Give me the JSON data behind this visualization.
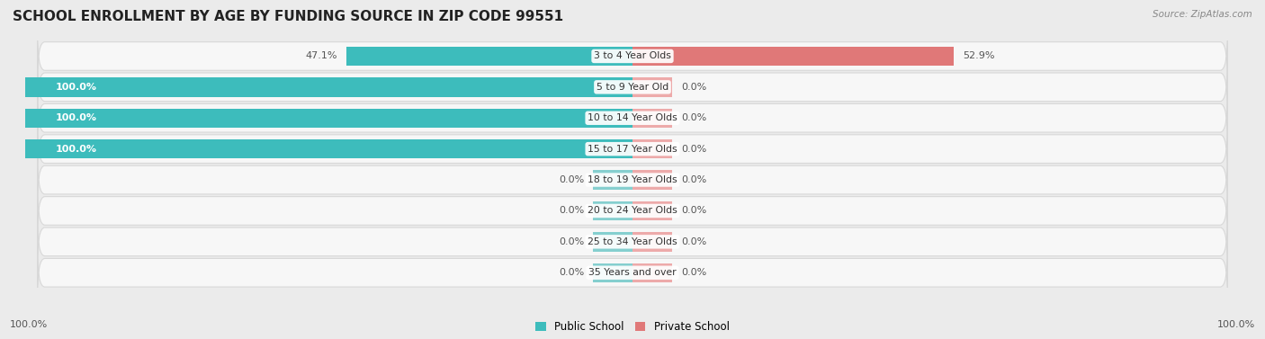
{
  "title": "SCHOOL ENROLLMENT BY AGE BY FUNDING SOURCE IN ZIP CODE 99551",
  "source": "Source: ZipAtlas.com",
  "categories": [
    "3 to 4 Year Olds",
    "5 to 9 Year Old",
    "10 to 14 Year Olds",
    "15 to 17 Year Olds",
    "18 to 19 Year Olds",
    "20 to 24 Year Olds",
    "25 to 34 Year Olds",
    "35 Years and over"
  ],
  "public_values": [
    47.1,
    100.0,
    100.0,
    100.0,
    0.0,
    0.0,
    0.0,
    0.0
  ],
  "private_values": [
    52.9,
    0.0,
    0.0,
    0.0,
    0.0,
    0.0,
    0.0,
    0.0
  ],
  "public_color": "#3DBCBC",
  "private_color": "#E07878",
  "public_color_stub": "#85CFCF",
  "private_color_stub": "#EDAAAA",
  "bg_color": "#ebebeb",
  "bar_bg_color": "#f7f7f7",
  "bar_bg_edge": "#d8d8d8",
  "title_fontsize": 11,
  "label_fontsize": 8,
  "bar_height": 0.62,
  "stub_size": 6.5,
  "legend_public": "Public School",
  "legend_private": "Private School",
  "left_axis_label": "100.0%",
  "right_axis_label": "100.0%"
}
